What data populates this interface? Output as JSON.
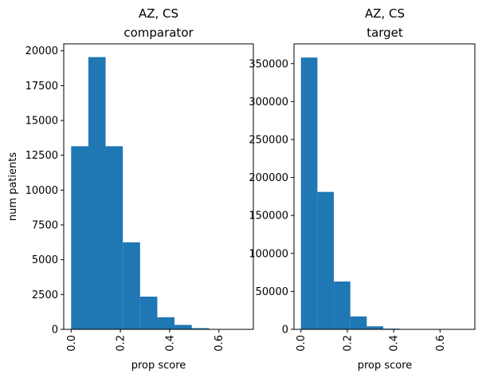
{
  "chart_data": [
    {
      "type": "bar",
      "title": "AZ, CS",
      "subtitle": "comparator",
      "xlabel": "prop score",
      "ylabel": "num patients",
      "xlim": [
        -0.03,
        0.74
      ],
      "ylim": [
        0,
        20500
      ],
      "bin_edges": [
        0.0,
        0.07,
        0.14,
        0.21,
        0.28,
        0.35,
        0.42,
        0.49,
        0.56,
        0.63,
        0.7
      ],
      "values": [
        13150,
        19550,
        13150,
        6250,
        2350,
        870,
        320,
        90,
        25,
        5
      ],
      "x_ticks": [
        0.0,
        0.2,
        0.4,
        0.6
      ],
      "x_tick_labels": [
        "0.0",
        "0.2",
        "0.4",
        "0.6"
      ],
      "y_ticks": [
        0,
        2500,
        5000,
        7500,
        10000,
        12500,
        15000,
        17500,
        20000
      ],
      "y_tick_labels": [
        "0",
        "2500",
        "5000",
        "7500",
        "10000",
        "12500",
        "15000",
        "17500",
        "20000"
      ],
      "bar_color": "#1f77b4"
    },
    {
      "type": "bar",
      "title": "AZ, CS",
      "subtitle": "target",
      "xlabel": "prop score",
      "ylabel": "",
      "xlim": [
        -0.03,
        0.75
      ],
      "ylim": [
        0,
        376000
      ],
      "bin_edges": [
        0.0,
        0.071,
        0.142,
        0.213,
        0.284,
        0.355,
        0.426,
        0.497,
        0.568,
        0.639,
        0.71
      ],
      "values": [
        358000,
        181000,
        63000,
        17000,
        4000,
        1000,
        300,
        80,
        20,
        5
      ],
      "x_ticks": [
        0.0,
        0.2,
        0.4,
        0.6
      ],
      "x_tick_labels": [
        "0.0",
        "0.2",
        "0.4",
        "0.6"
      ],
      "y_ticks": [
        0,
        50000,
        100000,
        150000,
        200000,
        250000,
        300000,
        350000
      ],
      "y_tick_labels": [
        "0",
        "50000",
        "100000",
        "150000",
        "200000",
        "250000",
        "300000",
        "350000"
      ],
      "bar_color": "#1f77b4"
    }
  ]
}
